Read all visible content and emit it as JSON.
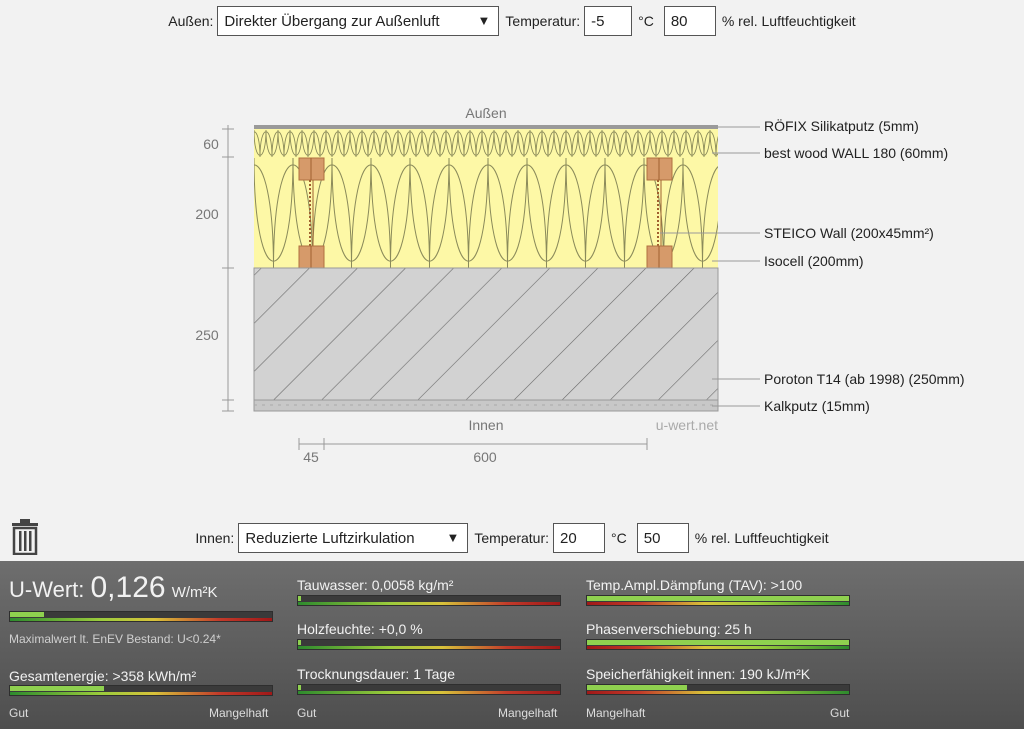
{
  "outer": {
    "label": "Außen:",
    "transition": "Direkter Übergang zur Außenluft",
    "temp_label": "Temperatur:",
    "temperature": "-5",
    "temp_unit": "°C",
    "humidity": "80",
    "humidity_unit": "% rel. Luftfeuchtigkeit"
  },
  "inner": {
    "label": "Innen:",
    "transition": "Reduzierte Luftzirkulation",
    "temp_label": "Temperatur:",
    "temperature": "20",
    "temp_unit": "°C",
    "humidity": "50",
    "humidity_unit": "% rel. Luftfeuchtigkeit"
  },
  "diagram": {
    "top_label": "Außen",
    "bottom_label": "Innen",
    "watermark": "u-wert.net",
    "dims_left": [
      "60",
      "200",
      "250"
    ],
    "dims_bottom": [
      "45",
      "600"
    ],
    "layers": [
      "RÖFIX Silikatputz (5mm)",
      "best wood WALL 180 (60mm)",
      "STEICO  Wall (200x45mm²)",
      "Isocell (200mm)",
      "Poroton T14 (ab 1998) (250mm)",
      "Kalkputz (15mm)"
    ],
    "colors": {
      "insulation": "#fdf8a6",
      "masonry": "#cfcfcf",
      "stud": "#d69a6a"
    }
  },
  "results": {
    "uwert_label": "U-Wert:",
    "uwert_value": "0,126",
    "uwert_unit": "W/m²K",
    "uwert_fill": 0.13,
    "enev_note": "Maximalwert lt. EnEV Bestand: U<0.24*",
    "gesamtenergie": "Gesamtenergie: >358 kWh/m²",
    "gesamtenergie_fill": 0.36,
    "tauwasser": "Tauwasser: 0,0058 kg/m²",
    "tauwasser_fill": 0.01,
    "holzfeuchte": "Holzfeuchte: +0,0 %",
    "holzfeuchte_fill": 0.01,
    "trocknung": "Trocknungsdauer: 1 Tage",
    "trocknung_fill": 0.01,
    "tav": "Temp.Ampl.Dämpfung (TAV): >100",
    "tav_fill": 1.0,
    "phase": "Phasenverschiebung: 25 h",
    "phase_fill": 1.0,
    "speicher": "Speicherfähigkeit innen: 190 kJ/m²K",
    "speicher_fill": 0.38,
    "scale_good": "Gut",
    "scale_bad": "Mangelhaft"
  }
}
